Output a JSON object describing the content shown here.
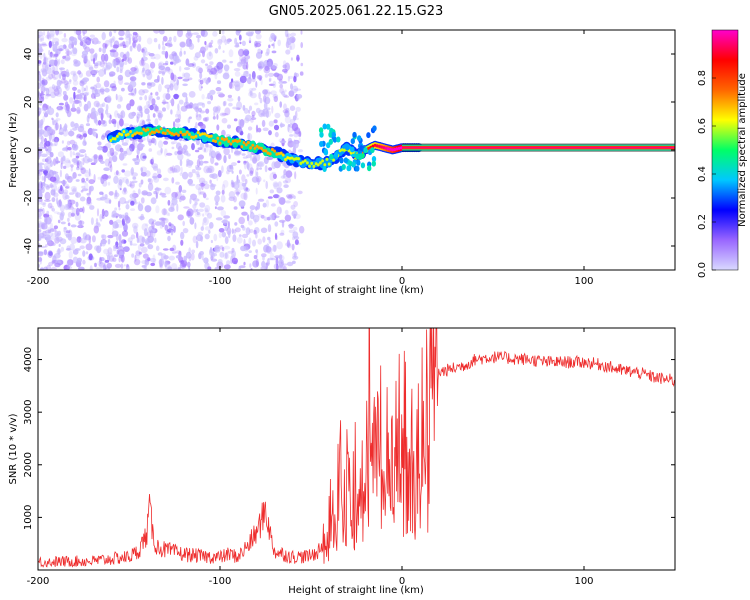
{
  "title": "GN05.2025.061.22.15.G23",
  "colors": {
    "snr_line": "#ee2d2d",
    "cbar_stops": [
      "#d9d9ff",
      "#9966ff",
      "#0000ff",
      "#00c8ff",
      "#00ff66",
      "#ffff00",
      "#ff6600",
      "#ff0000",
      "#ff00cc"
    ]
  },
  "chart_data": [
    {
      "type": "heatmap",
      "xlabel": "Height of straight line (km)",
      "ylabel": "Frequency (Hz)",
      "xlim": [
        -200,
        150
      ],
      "ylim": [
        -50,
        50
      ],
      "x_ticks": [
        -200,
        -100,
        0,
        100
      ],
      "y_ticks": [
        -40,
        -20,
        0,
        20,
        40
      ],
      "x_tick_labels": [
        "-200",
        "-100",
        "0",
        "100"
      ],
      "y_tick_labels": [
        "-40",
        "-20",
        "0",
        "20",
        "40"
      ],
      "colorbar": {
        "label": "Normalized spectral amplitude",
        "range": [
          0,
          1
        ],
        "ticks": [
          0,
          0.2,
          0.4,
          0.6,
          0.8
        ],
        "tick_labels": [
          "0.0",
          "0.2",
          "0.4",
          "0.6",
          "0.8"
        ]
      },
      "ridge": {
        "x": [
          -160,
          -150,
          -140,
          -130,
          -120,
          -110,
          -100,
          -90,
          -80,
          -70,
          -60,
          -50,
          -40,
          -35,
          -30,
          -25,
          -20,
          -15,
          -10,
          -5,
          0,
          10,
          150
        ],
        "y": [
          5,
          7,
          8,
          7.5,
          7,
          6,
          4,
          3,
          1,
          -1,
          -4,
          -6,
          -5,
          -2,
          1,
          -3,
          0,
          2,
          1,
          0,
          1,
          1,
          1
        ],
        "amplitude": [
          0.35,
          0.4,
          0.45,
          0.45,
          0.45,
          0.4,
          0.45,
          0.45,
          0.45,
          0.45,
          0.35,
          0.35,
          0.35,
          0.35,
          0.35,
          0.4,
          0.55,
          0.65,
          0.7,
          0.8,
          0.9,
          0.9,
          0.9
        ]
      },
      "noise_region": [
        -200,
        -55
      ]
    },
    {
      "type": "line",
      "xlabel": "Height of straight line (km)",
      "ylabel": "SNR (10 * v/v)",
      "xlim": [
        -200,
        150
      ],
      "ylim": [
        0,
        4600
      ],
      "x_ticks": [
        -200,
        -100,
        0,
        100
      ],
      "y_ticks": [
        1000,
        2000,
        3000,
        4000
      ],
      "x_tick_labels": [
        "-200",
        "-100",
        "0",
        "100"
      ],
      "y_tick_labels": [
        "1000",
        "2000",
        "3000",
        "4000"
      ],
      "series": [
        {
          "x": [
            -200,
            -170,
            -150,
            -145,
            -140,
            -139,
            -137,
            -135,
            -130,
            -120,
            -110,
            -100,
            -95,
            -90,
            -85,
            -80,
            -77,
            -75,
            -72,
            -70,
            -60,
            -50,
            -45,
            -40,
            -38,
            -36,
            -34,
            -32,
            -30,
            -28,
            -25,
            -22,
            -20,
            -18,
            -17,
            -16,
            -14,
            -12,
            -10,
            -5,
            0,
            5,
            10,
            15,
            20,
            25,
            30,
            35,
            40,
            50,
            60,
            70,
            80,
            90,
            100,
            110,
            120,
            130,
            140,
            150
          ],
          "y": [
            150,
            170,
            250,
            350,
            700,
            1250,
            700,
            450,
            380,
            300,
            260,
            240,
            300,
            250,
            450,
            700,
            950,
            1200,
            600,
            350,
            250,
            260,
            400,
            1000,
            1600,
            2000,
            2200,
            2100,
            1700,
            2400,
            1900,
            2900,
            2400,
            4500,
            3200,
            2000,
            2500,
            3300,
            2600,
            2700,
            2900,
            3100,
            3300,
            3600,
            3750,
            3800,
            3850,
            3900,
            4000,
            4050,
            4020,
            4000,
            3950,
            3950,
            3950,
            3900,
            3800,
            3750,
            3650,
            3600
          ]
        }
      ]
    }
  ]
}
